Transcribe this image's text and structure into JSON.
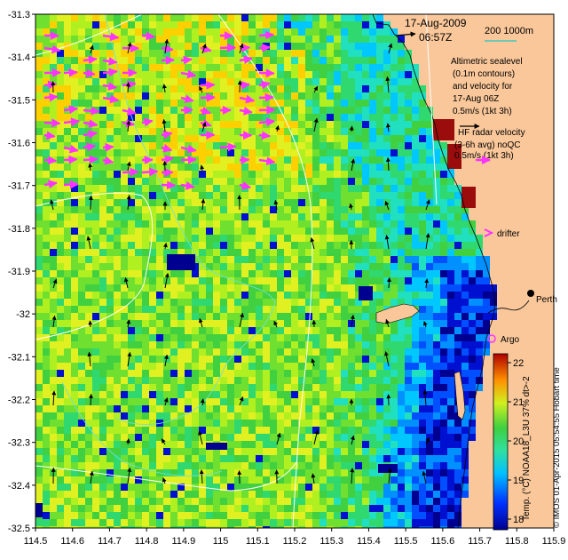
{
  "map": {
    "date": "17-Aug-2009",
    "time": "06:57Z",
    "scale_label": "200  1000m",
    "altimetry_text": [
      "Altimetric sealevel",
      "(0.1m contours)",
      "and velocity for",
      "17-Aug 06Z"
    ],
    "altimetry_speed": "0.5m/s (1kt 3h)",
    "hf_text": [
      "HF radar velocity",
      "(3-6h avg) noQC"
    ],
    "hf_speed": "0.5m/s (1kt 3h)",
    "drifter_label": "drifter",
    "perth_label": "Perth",
    "argo_label": "Argo",
    "colorbar_label": "Temp. (°C) NOAA18_L3U 37% dt>-2",
    "colorbar_ticks": [
      "22",
      "21",
      "20",
      "19",
      "18"
    ],
    "side_credit": "© IMOS 01-Apr-2015 05:54:55 Hobart time",
    "x_ticks": [
      "114.5",
      "114.6",
      "114.7",
      "114.8",
      "114.9",
      "115",
      "115.1",
      "115.2",
      "115.3",
      "115.4",
      "115.5",
      "115.6",
      "115.7",
      "115.8",
      "115.9"
    ],
    "y_ticks": [
      "-31.3",
      "-31.4",
      "-31.5",
      "-31.6",
      "-31.7",
      "-31.8",
      "-31.9",
      "-32",
      "-32.1",
      "-32.2",
      "-32.3",
      "-32.4",
      "-32.5"
    ],
    "colors": {
      "land": "#f9c79a",
      "hf_arrow": "#ff33ff",
      "argo_marker": "#ff33ff",
      "contour": "#ffffff",
      "isobath": "#6fe0d8",
      "scale_line": "#40c8c0",
      "reef": "#9b0d0d"
    },
    "icons": [
      "north-arrow-icon"
    ]
  }
}
